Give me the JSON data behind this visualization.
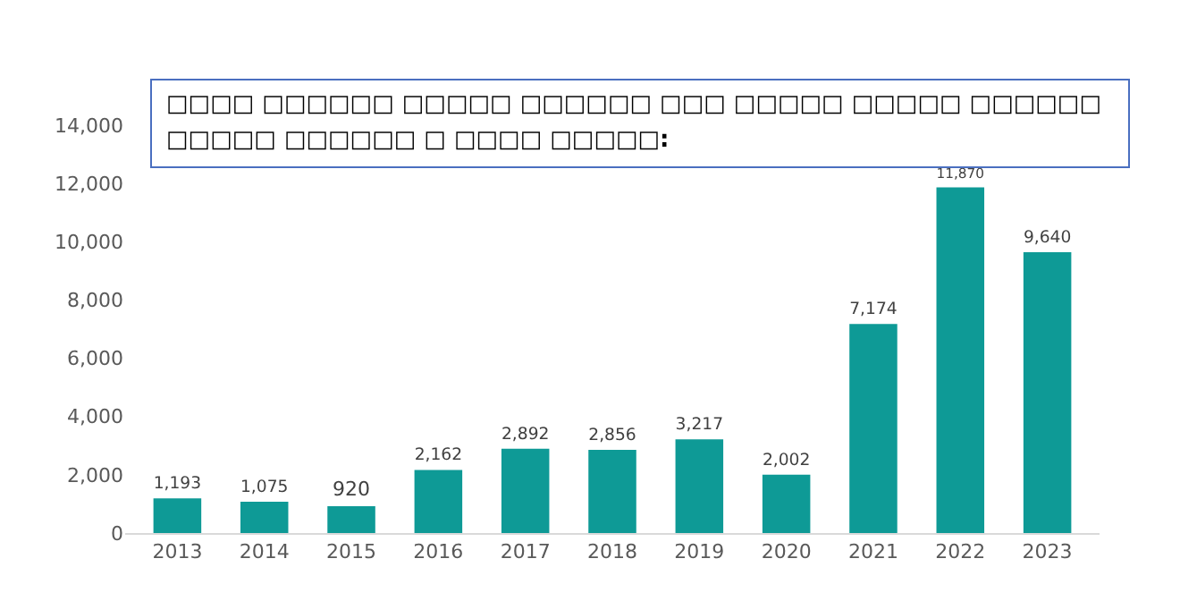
{
  "chart_data": {
    "type": "bar",
    "title": "□□□□ □□□□□□ □□□□□ □□□□□□ □□□ □□□□□ □□□□□ □□□□□□ □□□□□ □□□□□□ □ □□□□ □□□□□:",
    "categories": [
      "2013",
      "2014",
      "2015",
      "2016",
      "2017",
      "2018",
      "2019",
      "2020",
      "2021",
      "2022",
      "2023"
    ],
    "values": [
      1193,
      1075,
      920,
      2162,
      2892,
      2856,
      3217,
      2002,
      7174,
      11870,
      9640
    ],
    "value_labels": [
      "1,193",
      "1,075",
      "920",
      "2,162",
      "2,892",
      "2,856",
      "3,217",
      "2,002",
      "7,174",
      "11,870",
      "9,640"
    ],
    "color": "#0e9a96",
    "ylim": [
      0,
      14000
    ],
    "yticks": [
      0,
      {
        "value": 2000,
        "label": "2,000"
      },
      {
        "value": 4000,
        "label": "4,000"
      },
      {
        "value": 6000,
        "label": "6,000"
      },
      {
        "value": 8000,
        "label": "8,000"
      },
      {
        "value": 10000,
        "label": "10,000"
      },
      {
        "value": 12000,
        "label": "12,000"
      },
      {
        "value": 14000,
        "label": "14,000"
      }
    ],
    "grid": false,
    "legend": false
  }
}
